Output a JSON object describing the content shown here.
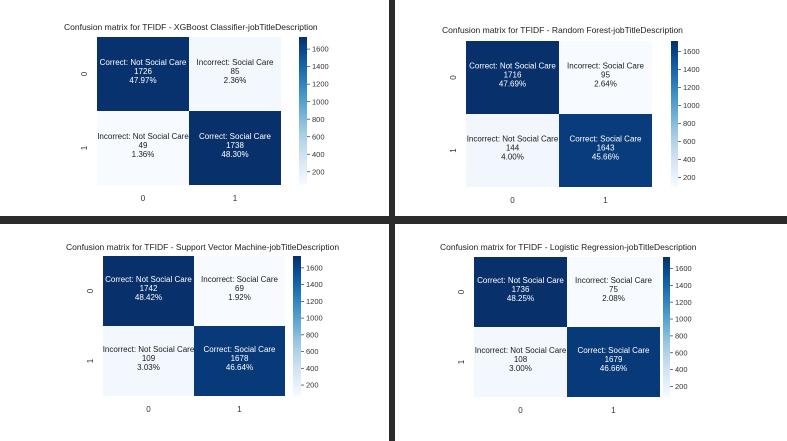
{
  "colors": {
    "cmap_light": "#f7fbff",
    "cmap_dark": "#08306b",
    "background": "#2b2b2b",
    "panel": "#ffffff"
  },
  "chart_data": [
    {
      "type": "heatmap",
      "title": "Confusion matrix for TFIDF - XGBoost Classifier-jobTitleDescription",
      "xticks": [
        "0",
        "1"
      ],
      "yticks": [
        "0",
        "1"
      ],
      "colorbar_ticks": [
        200,
        400,
        600,
        800,
        1000,
        1200,
        1400,
        1600
      ],
      "colorbar_range": [
        49,
        1738
      ],
      "cells": [
        [
          {
            "label": "Correct: Not Social Care",
            "count": 1726,
            "percent": "47.97%"
          },
          {
            "label": "Incorrect: Social Care",
            "count": 85,
            "percent": "2.36%"
          }
        ],
        [
          {
            "label": "Incorrect: Not Social Care",
            "count": 49,
            "percent": "1.36%"
          },
          {
            "label": "Correct: Social Care",
            "count": 1738,
            "percent": "48.30%"
          }
        ]
      ]
    },
    {
      "type": "heatmap",
      "title": "Confusion matrix for TFIDF - Random Forest-jobTitleDescription",
      "xticks": [
        "0",
        "1"
      ],
      "yticks": [
        "0",
        "1"
      ],
      "colorbar_ticks": [
        200,
        400,
        600,
        800,
        1000,
        1200,
        1400,
        1600
      ],
      "colorbar_range": [
        95,
        1716
      ],
      "cells": [
        [
          {
            "label": "Correct: Not Social Care",
            "count": 1716,
            "percent": "47.69%"
          },
          {
            "label": "Incorrect: Social Care",
            "count": 95,
            "percent": "2.64%"
          }
        ],
        [
          {
            "label": "Incorrect: Not Social Care",
            "count": 144,
            "percent": "4.00%"
          },
          {
            "label": "Correct: Social Care",
            "count": 1643,
            "percent": "45.66%"
          }
        ]
      ]
    },
    {
      "type": "heatmap",
      "title": "Confusion matrix for TFIDF - Support Vector Machine-jobTitleDescription",
      "xticks": [
        "0",
        "1"
      ],
      "yticks": [
        "0",
        "1"
      ],
      "colorbar_ticks": [
        200,
        400,
        600,
        800,
        1000,
        1200,
        1400,
        1600
      ],
      "colorbar_range": [
        69,
        1742
      ],
      "cells": [
        [
          {
            "label": "Correct: Not Social Care",
            "count": 1742,
            "percent": "48.42%"
          },
          {
            "label": "Incorrect: Social Care",
            "count": 69,
            "percent": "1.92%"
          }
        ],
        [
          {
            "label": "Incorrect: Not Social Care",
            "count": 109,
            "percent": "3.03%"
          },
          {
            "label": "Correct: Social Care",
            "count": 1678,
            "percent": "46.64%"
          }
        ]
      ]
    },
    {
      "type": "heatmap",
      "title": "Confusion matrix for TFIDF - Logistic Regression-jobTitleDescription",
      "xticks": [
        "0",
        "1"
      ],
      "yticks": [
        "0",
        "1"
      ],
      "colorbar_ticks": [
        200,
        400,
        600,
        800,
        1000,
        1200,
        1400,
        1600
      ],
      "colorbar_range": [
        75,
        1736
      ],
      "cells": [
        [
          {
            "label": "Correct: Not Social Care",
            "count": 1736,
            "percent": "48.25%"
          },
          {
            "label": "Incorrect: Social Care",
            "count": 75,
            "percent": "2.08%"
          }
        ],
        [
          {
            "label": "Incorrect: Not Social Care",
            "count": 108,
            "percent": "3.00%"
          },
          {
            "label": "Correct: Social Care",
            "count": 1679,
            "percent": "46.66%"
          }
        ]
      ]
    }
  ]
}
